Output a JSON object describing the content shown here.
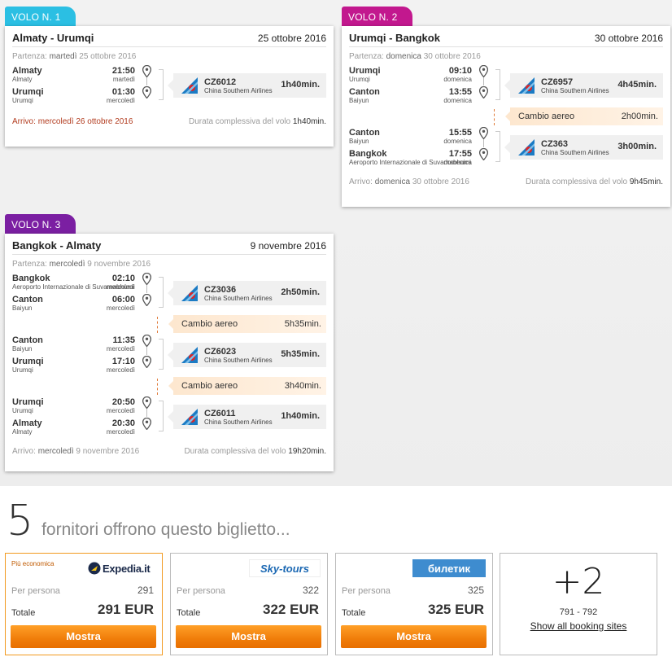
{
  "flights": [
    {
      "tab": "VOLO N. 1",
      "route": "Almaty - Urumqi",
      "date": "25 ottobre 2016",
      "dep_label": "Partenza:",
      "dep_day": "martedì",
      "dep_date": "25 ottobre 2016",
      "segments": [
        {
          "from": "Almaty",
          "from_sub": "Almaty",
          "dep_time": "21:50",
          "dep_day": "martedì",
          "to": "Urumqi",
          "to_sub": "Urumqi",
          "arr_time": "01:30",
          "arr_day": "mercoledì",
          "code": "CZ6012",
          "airline": "China Southern Airlines",
          "duration": "1h40min."
        }
      ],
      "arr_label": "Arrivo:",
      "arr_day": "mercoledì",
      "arr_date": "26 ottobre 2016",
      "total_label": "Durata complessiva del volo",
      "total": "1h40min."
    },
    {
      "tab": "VOLO N. 2",
      "route": "Urumqi - Bangkok",
      "date": "30 ottobre 2016",
      "dep_label": "Partenza:",
      "dep_day": "domenica",
      "dep_date": "30 ottobre 2016",
      "segments": [
        {
          "from": "Urumqi",
          "from_sub": "Urumqi",
          "dep_time": "09:10",
          "dep_day": "domenica",
          "to": "Canton",
          "to_sub": "Baiyun",
          "arr_time": "13:55",
          "arr_day": "domenica",
          "code": "CZ6957",
          "airline": "China Southern Airlines",
          "duration": "4h45min."
        },
        {
          "from": "Canton",
          "from_sub": "Baiyun",
          "dep_time": "15:55",
          "dep_day": "domenica",
          "to": "Bangkok",
          "to_sub": "Aeroporto Internazionale di Suvarnabhumi",
          "arr_time": "17:55",
          "arr_day": "domenica",
          "code": "CZ363",
          "airline": "China Southern Airlines",
          "duration": "3h00min."
        }
      ],
      "changes": [
        {
          "label": "Cambio aereo",
          "duration": "2h00min."
        }
      ],
      "arr_label": "Arrivo:",
      "arr_day": "domenica",
      "arr_date": "30 ottobre 2016",
      "total_label": "Durata complessiva del volo",
      "total": "9h45min."
    },
    {
      "tab": "VOLO N. 3",
      "route": "Bangkok - Almaty",
      "date": "9 novembre 2016",
      "dep_label": "Partenza:",
      "dep_day": "mercoledì",
      "dep_date": "9 novembre 2016",
      "segments": [
        {
          "from": "Bangkok",
          "from_sub": "Aeroporto Internazionale di Suvarnabhumi",
          "dep_time": "02:10",
          "dep_day": "mercoledì",
          "to": "Canton",
          "to_sub": "Baiyun",
          "arr_time": "06:00",
          "arr_day": "mercoledì",
          "code": "CZ3036",
          "airline": "China Southern Airlines",
          "duration": "2h50min."
        },
        {
          "from": "Canton",
          "from_sub": "Baiyun",
          "dep_time": "11:35",
          "dep_day": "mercoledì",
          "to": "Urumqi",
          "to_sub": "Urumqi",
          "arr_time": "17:10",
          "arr_day": "mercoledì",
          "code": "CZ6023",
          "airline": "China Southern Airlines",
          "duration": "5h35min."
        },
        {
          "from": "Urumqi",
          "from_sub": "Urumqi",
          "dep_time": "20:50",
          "dep_day": "mercoledì",
          "to": "Almaty",
          "to_sub": "Almaty",
          "arr_time": "20:30",
          "arr_day": "mercoledì",
          "code": "CZ6011",
          "airline": "China Southern Airlines",
          "duration": "1h40min."
        }
      ],
      "changes": [
        {
          "label": "Cambio aereo",
          "duration": "5h35min."
        },
        {
          "label": "Cambio aereo",
          "duration": "3h40min."
        }
      ],
      "arr_label": "Arrivo:",
      "arr_day": "mercoledì",
      "arr_date": "9 novembre 2016",
      "total_label": "Durata complessiva del volo",
      "total": "19h20min."
    }
  ],
  "providers": {
    "count": "5",
    "title": "fornitori offrono questo biglietto...",
    "offers": [
      {
        "badge": "Più economica",
        "logo": "Expedia.it",
        "per_label": "Per persona",
        "per_value": "291",
        "tot_label": "Totale",
        "tot_value": "291 EUR",
        "button": "Mostra"
      },
      {
        "badge": "",
        "logo": "Sky-tours",
        "per_label": "Per persona",
        "per_value": "322",
        "tot_label": "Totale",
        "tot_value": "322 EUR",
        "button": "Mostra"
      },
      {
        "badge": "",
        "logo": "билетик",
        "per_label": "Per persona",
        "per_value": "325",
        "tot_label": "Totale",
        "tot_value": "325 EUR",
        "button": "Mostra"
      }
    ],
    "more": {
      "plus": "+2",
      "range": "791 - 792",
      "link": "Show all booking sites"
    }
  },
  "colors": {
    "tab1": "#2bbfe3",
    "tab2": "#c2188e",
    "tab3": "#7b1fa2",
    "accent_orange": "#f07d0a",
    "airline_blue": "#1b7bc4",
    "airline_red": "#d8262a"
  },
  "icons": {
    "pin": "map-pin-icon",
    "tail": "china-southern-tail-icon"
  }
}
